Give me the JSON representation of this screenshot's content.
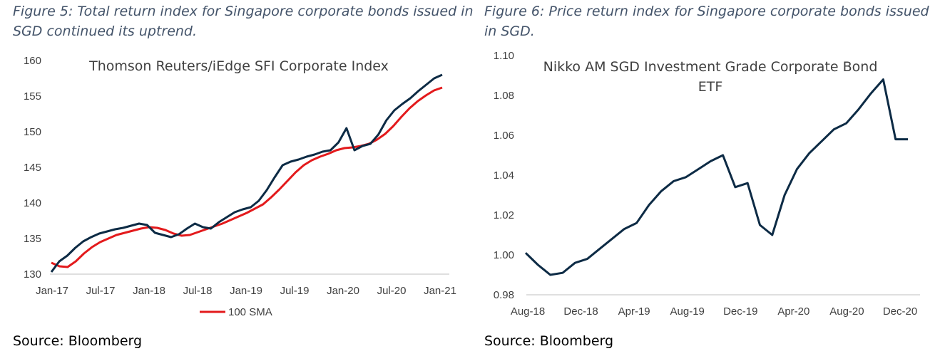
{
  "captions": {
    "fig5": "Figure 5: Total return index for Singapore corporate bonds issued in SGD continued its uptrend.",
    "fig6": "Figure 6: Price return index for Singapore corporate bonds issued in SGD."
  },
  "sources": {
    "fig5": "Source: Bloomberg",
    "fig6": "Source: Bloomberg"
  },
  "colors": {
    "index_line": "#0d2b45",
    "sma_line": "#e31a1c",
    "axis": "#bfbfbf",
    "caption": "#44546a"
  },
  "chart_data": [
    {
      "type": "line",
      "title": "Thomson Reuters/iEdge SFI Corporate Index",
      "xlabel": "",
      "ylabel": "",
      "ylim": [
        130,
        160
      ],
      "yticks": [
        "160",
        "155",
        "150",
        "145",
        "140",
        "135",
        "130"
      ],
      "xticks": [
        "Jan-17",
        "Jul-17",
        "Jan-18",
        "Jul-18",
        "Jan-19",
        "Jul-19",
        "Jan-20",
        "Jul-20",
        "Jan-21"
      ],
      "grid": false,
      "legend": {
        "position": "bottom",
        "entries": [
          "100 SMA"
        ]
      },
      "series": [
        {
          "key": "index",
          "x": [
            "Jan-17",
            "Feb-17",
            "Mar-17",
            "Apr-17",
            "May-17",
            "Jun-17",
            "Jul-17",
            "Aug-17",
            "Sep-17",
            "Oct-17",
            "Nov-17",
            "Dec-17",
            "Jan-18",
            "Feb-18",
            "Mar-18",
            "Apr-18",
            "May-18",
            "Jun-18",
            "Jul-18",
            "Aug-18",
            "Sep-18",
            "Oct-18",
            "Nov-18",
            "Dec-18",
            "Jan-19",
            "Feb-19",
            "Mar-19",
            "Apr-19",
            "May-19",
            "Jun-19",
            "Jul-19",
            "Aug-19",
            "Sep-19",
            "Oct-19",
            "Nov-19",
            "Dec-19",
            "Jan-20",
            "Feb-20",
            "Mar-20",
            "Mar-20b",
            "Apr-20",
            "May-20",
            "Jun-20",
            "Jul-20",
            "Aug-20",
            "Sep-20",
            "Oct-20",
            "Nov-20",
            "Dec-20",
            "Jan-21"
          ],
          "values": [
            130.3,
            131.8,
            132.6,
            133.7,
            134.6,
            135.2,
            135.7,
            136.0,
            136.3,
            136.5,
            136.8,
            137.1,
            136.9,
            135.8,
            135.5,
            135.2,
            135.6,
            136.4,
            137.1,
            136.6,
            136.4,
            137.3,
            138.0,
            138.7,
            139.1,
            139.4,
            140.3,
            141.8,
            143.6,
            145.3,
            145.8,
            146.1,
            146.5,
            146.8,
            147.2,
            147.4,
            148.5,
            150.5,
            147.4,
            148.0,
            148.3,
            149.6,
            151.6,
            153.0,
            153.9,
            154.7,
            155.7,
            156.6,
            157.5,
            158.0
          ]
        },
        {
          "key": "sma",
          "name": "100 SMA",
          "x": [
            "Jan-17",
            "Feb-17",
            "Mar-17",
            "Apr-17",
            "May-17",
            "Jun-17",
            "Jul-17",
            "Aug-17",
            "Sep-17",
            "Oct-17",
            "Nov-17",
            "Dec-17",
            "Jan-18",
            "Feb-18",
            "Mar-18",
            "Apr-18",
            "May-18",
            "Jun-18",
            "Jul-18",
            "Aug-18",
            "Sep-18",
            "Oct-18",
            "Nov-18",
            "Dec-18",
            "Jan-19",
            "Feb-19",
            "Mar-19",
            "Apr-19",
            "May-19",
            "Jun-19",
            "Jul-19",
            "Aug-19",
            "Sep-19",
            "Oct-19",
            "Nov-19",
            "Dec-19",
            "Jan-20",
            "Feb-20",
            "Mar-20",
            "Apr-20",
            "May-20",
            "Jun-20",
            "Jul-20",
            "Aug-20",
            "Sep-20",
            "Oct-20",
            "Nov-20",
            "Dec-20",
            "Jan-21"
          ],
          "values": [
            131.6,
            131.1,
            131.0,
            131.8,
            132.9,
            133.8,
            134.5,
            135.0,
            135.5,
            135.8,
            136.1,
            136.4,
            136.6,
            136.5,
            136.2,
            135.7,
            135.4,
            135.5,
            135.9,
            136.3,
            136.7,
            137.1,
            137.6,
            138.1,
            138.6,
            139.2,
            139.8,
            140.8,
            141.9,
            143.1,
            144.3,
            145.3,
            146.0,
            146.5,
            146.9,
            147.4,
            147.7,
            147.8,
            148.0,
            148.3,
            148.9,
            149.7,
            150.8,
            152.1,
            153.3,
            154.3,
            155.1,
            155.8,
            156.2
          ]
        }
      ]
    },
    {
      "type": "line",
      "title": "Nikko AM SGD Investment Grade Corporate Bond ETF",
      "xlabel": "",
      "ylabel": "",
      "ylim": [
        0.98,
        1.1
      ],
      "yticks": [
        "1.10",
        "1.08",
        "1.06",
        "1.04",
        "1.02",
        "1.00",
        "0.98"
      ],
      "xticks": [
        "Aug-18",
        "Dec-18",
        "Apr-19",
        "Aug-19",
        "Dec-19",
        "Apr-20",
        "Aug-20",
        "Dec-20"
      ],
      "grid": false,
      "series": [
        {
          "key": "etf",
          "x": [
            "Aug-18",
            "Sep-18",
            "Oct-18",
            "Nov-18",
            "Dec-18",
            "Jan-19",
            "Feb-19",
            "Mar-19",
            "Apr-19",
            "May-19",
            "Jun-19",
            "Jul-19",
            "Aug-19",
            "Sep-19",
            "Oct-19",
            "Nov-19",
            "Dec-19",
            "Jan-20",
            "Feb-20",
            "Mar-20",
            "Mar-20b",
            "Apr-20",
            "May-20",
            "Jun-20",
            "Jul-20",
            "Aug-20",
            "Sep-20",
            "Oct-20",
            "Nov-20",
            "Dec-20",
            "Dec-20b",
            "Jan-21"
          ],
          "values": [
            1.001,
            0.995,
            0.99,
            0.991,
            0.996,
            0.998,
            1.003,
            1.008,
            1.013,
            1.016,
            1.025,
            1.032,
            1.037,
            1.039,
            1.043,
            1.047,
            1.05,
            1.034,
            1.036,
            1.015,
            1.01,
            1.03,
            1.043,
            1.051,
            1.057,
            1.063,
            1.066,
            1.073,
            1.081,
            1.088,
            1.058,
            1.058
          ]
        }
      ]
    }
  ]
}
